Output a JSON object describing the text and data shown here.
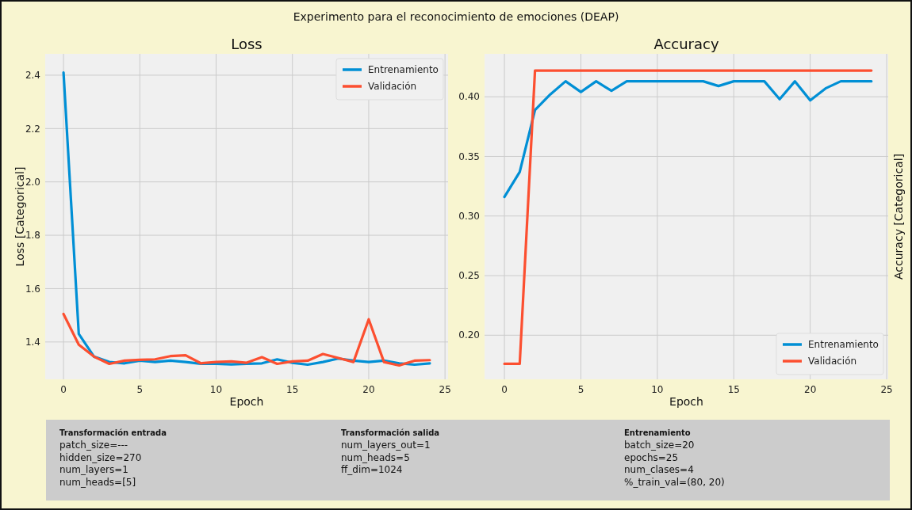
{
  "chart_data": [
    {
      "type": "other",
      "title": "Experimento para el reconocimiento de emociones (DEAP)"
    },
    {
      "type": "line",
      "title": "Loss",
      "xlabel": "Epoch",
      "ylabel": "Loss [Categorical]",
      "x": [
        0,
        1,
        2,
        3,
        4,
        5,
        6,
        7,
        8,
        9,
        10,
        11,
        12,
        13,
        14,
        15,
        16,
        17,
        18,
        19,
        20,
        21,
        22,
        23,
        24
      ],
      "series": [
        {
          "name": "Entrenamiento",
          "color": "#008fd5",
          "values": [
            2.41,
            1.43,
            1.345,
            1.325,
            1.32,
            1.33,
            1.325,
            1.33,
            1.325,
            1.318,
            1.318,
            1.316,
            1.318,
            1.32,
            1.335,
            1.322,
            1.315,
            1.325,
            1.338,
            1.33,
            1.325,
            1.33,
            1.32,
            1.315,
            1.32
          ]
        },
        {
          "name": "Validación",
          "color": "#fc4f30",
          "values": [
            1.505,
            1.39,
            1.345,
            1.318,
            1.33,
            1.333,
            1.335,
            1.347,
            1.35,
            1.32,
            1.325,
            1.327,
            1.322,
            1.343,
            1.318,
            1.327,
            1.33,
            1.355,
            1.34,
            1.325,
            1.485,
            1.325,
            1.312,
            1.33,
            1.332
          ]
        }
      ],
      "xlim": [
        -1.2,
        25.2
      ],
      "xticks": [
        0,
        5,
        10,
        15,
        20,
        25
      ],
      "ylim": [
        1.26,
        2.48
      ],
      "yticks": [
        {
          "value": 1.4,
          "label": "1.4"
        },
        {
          "value": 1.6,
          "label": "1.6"
        },
        {
          "value": 1.8,
          "label": "1.8"
        },
        {
          "value": 2.0,
          "label": "2.0"
        },
        {
          "value": 2.2,
          "label": "2.2"
        },
        {
          "value": 2.4,
          "label": "2.4"
        }
      ],
      "grid": true,
      "legend": "top right",
      "line_style": "solid"
    },
    {
      "type": "line",
      "title": "Accuracy",
      "xlabel": "Epoch",
      "ylabel": "Accuracy [Categorical]",
      "x": [
        0,
        1,
        2,
        3,
        4,
        5,
        6,
        7,
        8,
        9,
        10,
        11,
        12,
        13,
        14,
        15,
        16,
        17,
        18,
        19,
        20,
        21,
        22,
        23,
        24
      ],
      "series": [
        {
          "name": "Entrenamiento",
          "color": "#008fd5",
          "values": [
            0.316,
            0.337,
            0.389,
            0.402,
            0.413,
            0.404,
            0.413,
            0.405,
            0.413,
            0.413,
            0.413,
            0.413,
            0.413,
            0.413,
            0.409,
            0.413,
            0.413,
            0.413,
            0.398,
            0.413,
            0.397,
            0.407,
            0.413,
            0.413,
            0.413
          ]
        },
        {
          "name": "Validación",
          "color": "#fc4f30",
          "values": [
            0.176,
            0.176,
            0.422,
            0.422,
            0.422,
            0.422,
            0.422,
            0.422,
            0.422,
            0.422,
            0.422,
            0.422,
            0.422,
            0.422,
            0.422,
            0.422,
            0.422,
            0.422,
            0.422,
            0.422,
            0.422,
            0.422,
            0.422,
            0.422,
            0.422
          ]
        }
      ],
      "xlim": [
        -1.3,
        25.1
      ],
      "xticks": [
        0,
        5,
        10,
        15,
        20,
        25
      ],
      "ylim": [
        0.163,
        0.436
      ],
      "yticks": [
        {
          "value": 0.2,
          "label": "0.20"
        },
        {
          "value": 0.25,
          "label": "0.25"
        },
        {
          "value": 0.3,
          "label": "0.30"
        },
        {
          "value": 0.35,
          "label": "0.35"
        },
        {
          "value": 0.4,
          "label": "0.40"
        }
      ],
      "grid": true,
      "legend": "bottom right",
      "line_style": "solid"
    },
    {
      "type": "other",
      "title": "Transformación entrada",
      "annotations": [
        "patch_size=---",
        "hidden_size=270",
        "num_layers=1",
        "num_heads=[5]"
      ]
    },
    {
      "type": "other",
      "title": "Transformación salida",
      "annotations": [
        "num_layers_out=1",
        "num_heads=5",
        "ff_dim=1024"
      ]
    },
    {
      "type": "other",
      "title": "Entrenamiento",
      "annotations": [
        "batch_size=20",
        "epochs=25",
        "num_clases=4",
        "%_train_val=(80, 20)"
      ]
    }
  ]
}
